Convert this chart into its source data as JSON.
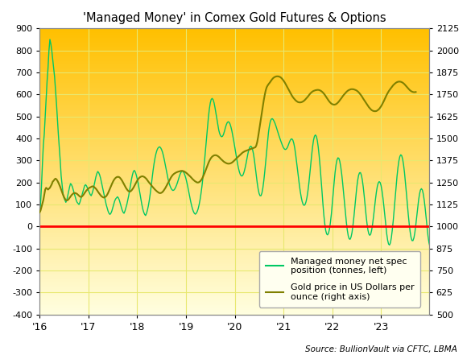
{
  "title": "'Managed Money' in Comex Gold Futures & Options",
  "source": "Source: BullionVault via CFTC, LBMA",
  "left_ylim": [
    -400,
    900
  ],
  "right_ylim": [
    500,
    2125
  ],
  "left_yticks": [
    -400,
    -300,
    -200,
    -100,
    0,
    100,
    200,
    300,
    400,
    500,
    600,
    700,
    800,
    900
  ],
  "right_yticks": [
    500,
    625,
    750,
    875,
    1000,
    1125,
    1250,
    1375,
    1500,
    1625,
    1750,
    1875,
    2000,
    2125
  ],
  "xtick_labels": [
    "'16",
    "'17",
    "'18",
    "'19",
    "'20",
    "'21",
    "'22",
    "'23"
  ],
  "xtick_positions": [
    0,
    52,
    104,
    156,
    208,
    260,
    312,
    364
  ],
  "n_points": 416,
  "green_color": "#00C864",
  "gold_color": "#808000",
  "red_line_color": "#FF0000",
  "bg_top_color": "#FFC000",
  "bg_bottom_color": "#FFFFE0",
  "legend_label_green": "Managed money net spec\nposition (tonnes, left)",
  "legend_label_gold": "Gold price in US Dollars per\nounce (right axis)",
  "grid_color": "#E8E870",
  "legend_facecolor": "#FFFFF0",
  "green_data_y": [
    60,
    100,
    180,
    280,
    370,
    420,
    500,
    580,
    660,
    720,
    800,
    850,
    830,
    800,
    760,
    720,
    680,
    620,
    560,
    490,
    420,
    360,
    300,
    230,
    190,
    150,
    130,
    120,
    110,
    120,
    140,
    160,
    180,
    195,
    190,
    180,
    165,
    150,
    135,
    120,
    110,
    105,
    100,
    110,
    125,
    140,
    155,
    170,
    185,
    190,
    185,
    175,
    165,
    155,
    145,
    140,
    150,
    165,
    185,
    205,
    225,
    240,
    250,
    245,
    235,
    220,
    200,
    180,
    160,
    140,
    120,
    100,
    85,
    70,
    60,
    55,
    60,
    70,
    85,
    100,
    115,
    125,
    130,
    135,
    130,
    120,
    105,
    90,
    75,
    65,
    60,
    70,
    85,
    100,
    120,
    140,
    165,
    190,
    215,
    235,
    250,
    255,
    248,
    235,
    218,
    198,
    175,
    150,
    125,
    100,
    80,
    65,
    55,
    50,
    60,
    75,
    95,
    120,
    150,
    185,
    220,
    255,
    285,
    310,
    330,
    345,
    355,
    360,
    362,
    358,
    350,
    338,
    322,
    302,
    280,
    258,
    235,
    215,
    198,
    185,
    175,
    168,
    164,
    165,
    170,
    178,
    188,
    200,
    214,
    228,
    240,
    248,
    252,
    250,
    243,
    232,
    218,
    200,
    180,
    158,
    136,
    115,
    96,
    80,
    68,
    60,
    56,
    60,
    68,
    80,
    98,
    120,
    148,
    180,
    218,
    260,
    306,
    355,
    405,
    454,
    498,
    535,
    562,
    578,
    582,
    576,
    562,
    540,
    514,
    486,
    460,
    438,
    422,
    412,
    408,
    410,
    418,
    432,
    448,
    462,
    472,
    476,
    474,
    466,
    452,
    434,
    412,
    388,
    362,
    336,
    310,
    286,
    265,
    248,
    236,
    230,
    230,
    236,
    248,
    265,
    285,
    308,
    330,
    348,
    360,
    365,
    362,
    350,
    330,
    302,
    268,
    232,
    198,
    170,
    150,
    140,
    140,
    152,
    175,
    208,
    248,
    294,
    342,
    388,
    428,
    458,
    478,
    488,
    490,
    486,
    478,
    468,
    456,
    442,
    428,
    415,
    402,
    390,
    378,
    367,
    358,
    352,
    350,
    352,
    358,
    368,
    380,
    390,
    397,
    398,
    392,
    378,
    356,
    326,
    292,
    256,
    220,
    186,
    156,
    131,
    112,
    100,
    96,
    100,
    112,
    132,
    160,
    195,
    236,
    280,
    324,
    362,
    392,
    410,
    416,
    410,
    392,
    362,
    322,
    274,
    220,
    162,
    104,
    52,
    12,
    -18,
    -34,
    -38,
    -30,
    -12,
    18,
    56,
    102,
    152,
    202,
    246,
    280,
    302,
    312,
    310,
    296,
    272,
    240,
    200,
    155,
    108,
    62,
    20,
    -16,
    -42,
    -56,
    -58,
    -48,
    -28,
    4,
    42,
    86,
    132,
    174,
    208,
    232,
    244,
    245,
    234,
    212,
    180,
    140,
    96,
    52,
    14,
    -16,
    -34,
    -40,
    -34,
    -16,
    12,
    46,
    84,
    122,
    156,
    182,
    198,
    204,
    200,
    186,
    162,
    130,
    92,
    50,
    8,
    -32,
    -62,
    -80,
    -84,
    -74,
    -50,
    -14,
    28,
    76,
    128,
    180,
    228,
    268,
    298,
    318,
    326,
    322,
    306,
    280,
    244,
    200,
    152,
    102,
    54,
    12,
    -24,
    -50,
    -64,
    -64,
    -52,
    -28,
    6,
    44,
    84,
    120,
    148,
    166,
    172,
    166,
    148,
    120,
    84,
    42,
    -2,
    -42,
    -72,
    -90,
    -94,
    -84,
    -60
  ],
  "gold_data_y": [
    1080,
    1090,
    1110,
    1130,
    1150,
    1180,
    1210,
    1220,
    1215,
    1210,
    1215,
    1220,
    1230,
    1240,
    1255,
    1260,
    1268,
    1272,
    1268,
    1260,
    1250,
    1238,
    1225,
    1210,
    1195,
    1180,
    1168,
    1158,
    1150,
    1148,
    1150,
    1155,
    1163,
    1170,
    1178,
    1183,
    1188,
    1190,
    1190,
    1188,
    1185,
    1180,
    1175,
    1170,
    1168,
    1170,
    1175,
    1182,
    1190,
    1198,
    1205,
    1210,
    1215,
    1220,
    1222,
    1225,
    1228,
    1228,
    1225,
    1220,
    1215,
    1208,
    1200,
    1192,
    1185,
    1178,
    1172,
    1168,
    1165,
    1165,
    1168,
    1172,
    1180,
    1190,
    1202,
    1215,
    1228,
    1240,
    1252,
    1262,
    1270,
    1276,
    1280,
    1282,
    1282,
    1280,
    1275,
    1268,
    1260,
    1250,
    1240,
    1230,
    1220,
    1212,
    1205,
    1200,
    1198,
    1200,
    1205,
    1212,
    1220,
    1230,
    1240,
    1250,
    1260,
    1268,
    1275,
    1280,
    1283,
    1285,
    1285,
    1283,
    1280,
    1275,
    1270,
    1262,
    1255,
    1248,
    1242,
    1235,
    1228,
    1222,
    1216,
    1210,
    1205,
    1200,
    1196,
    1192,
    1190,
    1190,
    1192,
    1196,
    1202,
    1210,
    1218,
    1228,
    1238,
    1248,
    1258,
    1268,
    1278,
    1286,
    1293,
    1298,
    1302,
    1305,
    1308,
    1310,
    1312,
    1313,
    1315,
    1316,
    1316,
    1315,
    1313,
    1310,
    1306,
    1302,
    1297,
    1292,
    1287,
    1282,
    1276,
    1270,
    1265,
    1260,
    1256,
    1253,
    1250,
    1250,
    1252,
    1256,
    1262,
    1270,
    1280,
    1292,
    1305,
    1319,
    1334,
    1348,
    1361,
    1373,
    1383,
    1391,
    1397,
    1401,
    1404,
    1405,
    1405,
    1403,
    1400,
    1396,
    1391,
    1385,
    1380,
    1375,
    1370,
    1366,
    1363,
    1360,
    1358,
    1357,
    1357,
    1358,
    1360,
    1363,
    1367,
    1372,
    1377,
    1382,
    1388,
    1393,
    1398,
    1403,
    1408,
    1413,
    1418,
    1422,
    1425,
    1428,
    1430,
    1432,
    1434,
    1436,
    1438,
    1440,
    1442,
    1444,
    1446,
    1448,
    1450,
    1460,
    1480,
    1510,
    1545,
    1580,
    1615,
    1650,
    1685,
    1718,
    1747,
    1772,
    1790,
    1800,
    1808,
    1815,
    1822,
    1830,
    1837,
    1843,
    1847,
    1850,
    1852,
    1853,
    1853,
    1852,
    1850,
    1847,
    1842,
    1836,
    1829,
    1821,
    1812,
    1802,
    1792,
    1782,
    1772,
    1762,
    1752,
    1743,
    1735,
    1728,
    1722,
    1716,
    1712,
    1708,
    1706,
    1705,
    1705,
    1706,
    1708,
    1711,
    1715,
    1720,
    1726,
    1732,
    1738,
    1745,
    1752,
    1758,
    1763,
    1767,
    1770,
    1772,
    1774,
    1775,
    1776,
    1776,
    1775,
    1773,
    1770,
    1766,
    1761,
    1755,
    1748,
    1740,
    1732,
    1724,
    1716,
    1709,
    1703,
    1698,
    1695,
    1693,
    1692,
    1693,
    1695,
    1699,
    1704,
    1710,
    1717,
    1724,
    1731,
    1739,
    1746,
    1752,
    1758,
    1764,
    1769,
    1773,
    1776,
    1778,
    1780,
    1780,
    1780,
    1779,
    1777,
    1775,
    1772,
    1768,
    1763,
    1757,
    1750,
    1743,
    1735,
    1726,
    1718,
    1710,
    1702,
    1694,
    1686,
    1678,
    1672,
    1666,
    1661,
    1658,
    1656,
    1655,
    1655,
    1656,
    1659,
    1663,
    1668,
    1675,
    1683,
    1692,
    1702,
    1713,
    1725,
    1737,
    1748,
    1758,
    1767,
    1775,
    1782,
    1789,
    1796,
    1803,
    1808,
    1813,
    1817,
    1820,
    1822,
    1823,
    1823,
    1822,
    1820,
    1817,
    1813,
    1808,
    1802,
    1796,
    1790,
    1784,
    1778,
    1773,
    1769,
    1766,
    1764,
    1763,
    1763,
    1764
  ]
}
